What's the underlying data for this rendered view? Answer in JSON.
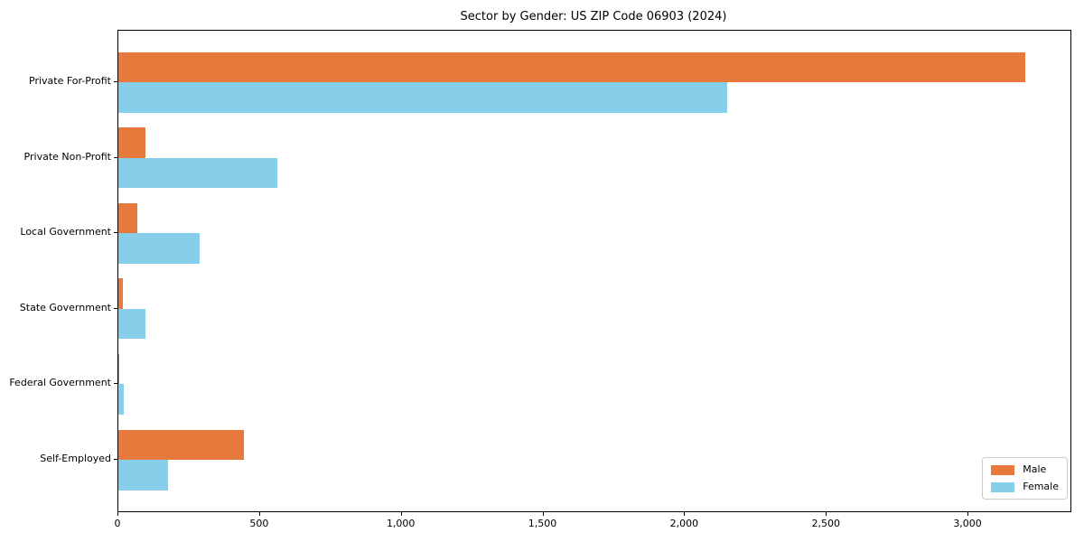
{
  "chart_data": {
    "type": "bar",
    "orientation": "horizontal",
    "title": "Sector by Gender: US ZIP Code 06903 (2024)",
    "categories": [
      "Private For-Profit",
      "Private Non-Profit",
      "Local Government",
      "State Government",
      "Federal Government",
      "Self-Employed"
    ],
    "series": [
      {
        "name": "Male",
        "color": "#e8793c",
        "values": [
          3200,
          95,
          67,
          16,
          4,
          443
        ]
      },
      {
        "name": "Female",
        "color": "#87ceeb",
        "values": [
          2150,
          560,
          287,
          96,
          20,
          175
        ]
      }
    ],
    "xlabel": "",
    "ylabel": "",
    "xlim": [
      0,
      3360
    ],
    "xticks": [
      {
        "value": 0,
        "label": "0"
      },
      {
        "value": 500,
        "label": "500"
      },
      {
        "value": 1000,
        "label": "1,000"
      },
      {
        "value": 1500,
        "label": "1,500"
      },
      {
        "value": 2000,
        "label": "2,000"
      },
      {
        "value": 2500,
        "label": "2,500"
      },
      {
        "value": 3000,
        "label": "3,000"
      }
    ],
    "grid": false,
    "legend_position": "lower right",
    "frame_color": "#000000",
    "background_color": "#ffffff"
  }
}
